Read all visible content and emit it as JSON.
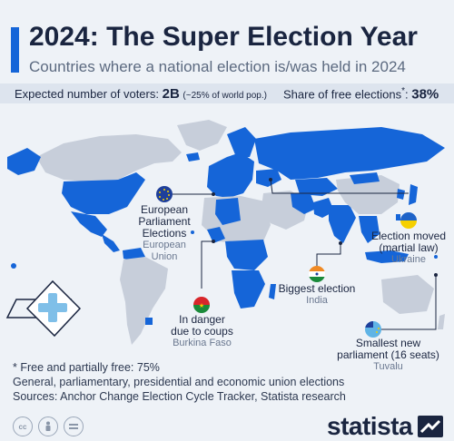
{
  "header": {
    "title": "2024: The Super Election Year",
    "subtitle": "Countries where a national election is/was held in 2024"
  },
  "stats": {
    "voters_label": "Expected number of voters:",
    "voters_value": "2B",
    "voters_note": "(~25% of world pop.)",
    "free_label": "Share of free elections",
    "free_marker": "*",
    "free_suffix": ":",
    "free_value": "38%"
  },
  "callouts": {
    "eu": {
      "label_lines": [
        "European",
        "Parliament",
        "Elections"
      ],
      "country_lines": [
        "European",
        "Union"
      ]
    },
    "ukraine": {
      "label_lines": [
        "Election moved",
        "(martial law)"
      ],
      "country": "Ukraine"
    },
    "india": {
      "label": "Biggest election",
      "country": "India"
    },
    "burkina": {
      "label_lines": [
        "In danger",
        "due to coups"
      ],
      "country": "Burkina Faso"
    },
    "tuvalu": {
      "label_lines": [
        "Smallest new",
        "parliament (16 seats)"
      ],
      "country": "Tuvalu"
    }
  },
  "footnotes": {
    "line1": "* Free and partially free: 75%",
    "line2": "General, parliamentary, presidential and economic union elections",
    "line3": "Sources: Anchor Change Election Cycle Tracker, Statista research"
  },
  "brand": {
    "logo_text": "statista"
  },
  "colors": {
    "election": "#1565d8",
    "no_election": "#c7ceda",
    "accent": "#1565d8"
  },
  "chart_data": {
    "type": "choropleth-map",
    "title": "2024: The Super Election Year",
    "subtitle": "Countries where a national election is/was held in 2024",
    "stats": {
      "expected_voters": "2B",
      "share_of_world_population": "~25%",
      "share_of_free_elections_percent": 38,
      "free_and_partially_free_percent": 75
    },
    "highlighted": [
      "European Union",
      "Ukraine",
      "India",
      "Burkina Faso",
      "Tuvalu"
    ]
  }
}
